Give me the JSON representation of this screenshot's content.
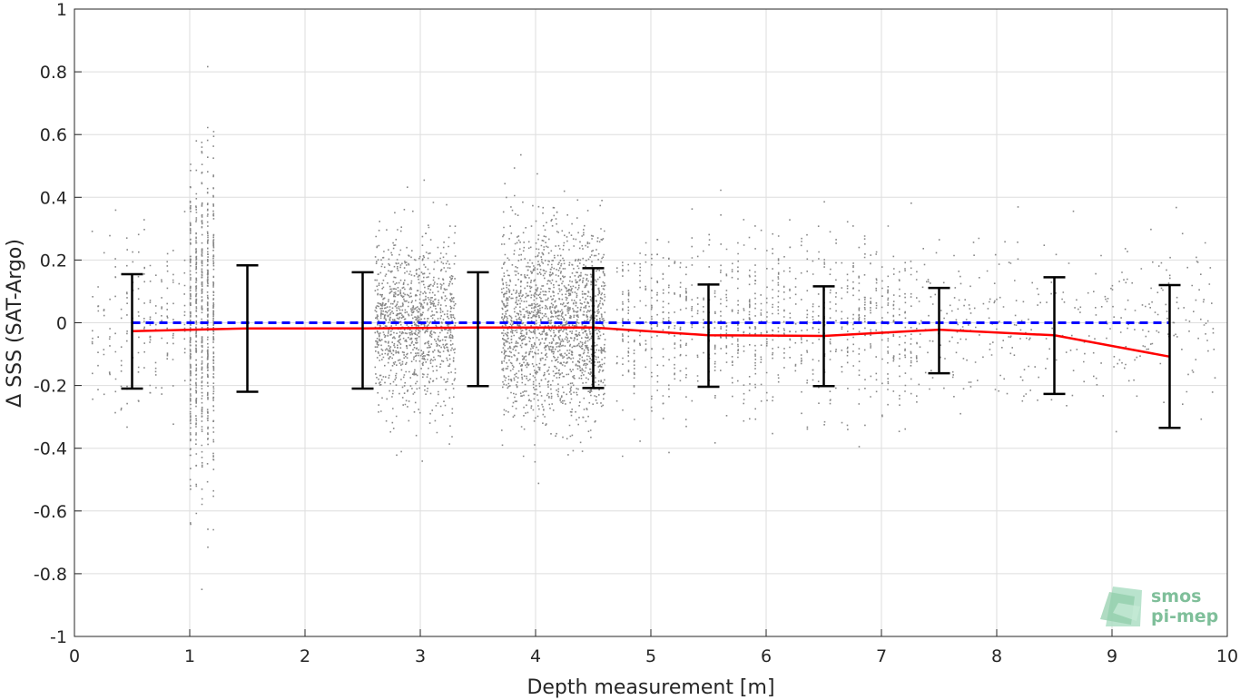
{
  "chart_data": {
    "type": "scatter",
    "title": "",
    "xlabel": "Depth measurement [m]",
    "ylabel": "Δ SSS (SAT-Argo)",
    "xlim": [
      0,
      10
    ],
    "ylim": [
      -1,
      1
    ],
    "grid": true,
    "x_ticks": [
      "0",
      "1",
      "2",
      "3",
      "4",
      "5",
      "6",
      "7",
      "8",
      "9",
      "10"
    ],
    "y_ticks": [
      "-1",
      "-0.8",
      "-0.6",
      "-0.4",
      "-0.2",
      "0",
      "0.2",
      "0.4",
      "0.6",
      "0.8",
      "1"
    ],
    "scatter_clusters": [
      {
        "x_center": 1.1,
        "x_spread": 0.12,
        "y_sd": 0.25,
        "count": 700,
        "columns": true
      },
      {
        "x_center": 2.95,
        "x_spread": 0.35,
        "y_sd": 0.13,
        "count": 1100,
        "columns": false
      },
      {
        "x_center": 4.15,
        "x_spread": 0.45,
        "y_sd": 0.15,
        "count": 1800,
        "columns": false
      },
      {
        "x_center": 0.6,
        "x_spread": 0.45,
        "y_sd": 0.14,
        "count": 200,
        "columns": true
      },
      {
        "x_center": 6.0,
        "x_spread": 1.3,
        "y_sd": 0.14,
        "count": 1000,
        "columns": true
      },
      {
        "x_center": 8.6,
        "x_spread": 1.3,
        "y_sd": 0.13,
        "count": 350,
        "columns": false
      }
    ],
    "series": [
      {
        "type": "line",
        "x": [
          0.5,
          1.5,
          2.5,
          3.5,
          4.5,
          5.5,
          6.5,
          7.5,
          8.5,
          9.5
        ],
        "values": [
          -0.027,
          -0.018,
          -0.018,
          -0.015,
          -0.015,
          -0.04,
          -0.042,
          -0.022,
          -0.04,
          -0.108
        ],
        "color": "#ff0000"
      },
      {
        "type": "dashed-line",
        "x": [
          0.5,
          9.5
        ],
        "values": [
          0,
          0
        ],
        "color": "#0000ff"
      },
      {
        "type": "errorbar",
        "x": [
          0.5,
          1.5,
          2.5,
          3.5,
          4.5,
          5.5,
          6.5,
          7.5,
          8.5,
          9.5
        ],
        "upper": [
          0.155,
          0.183,
          0.161,
          0.161,
          0.174,
          0.122,
          0.116,
          0.111,
          0.145,
          0.12
        ],
        "lower": [
          -0.21,
          -0.22,
          -0.21,
          -0.202,
          -0.208,
          -0.204,
          -0.202,
          -0.161,
          -0.227,
          -0.335
        ],
        "color": "#000000"
      }
    ],
    "colors": {
      "scatter": "#888888",
      "grid": "#dedede",
      "axis": "#262626"
    },
    "watermark": {
      "line1": "smos",
      "line2": "pi-mep"
    }
  }
}
